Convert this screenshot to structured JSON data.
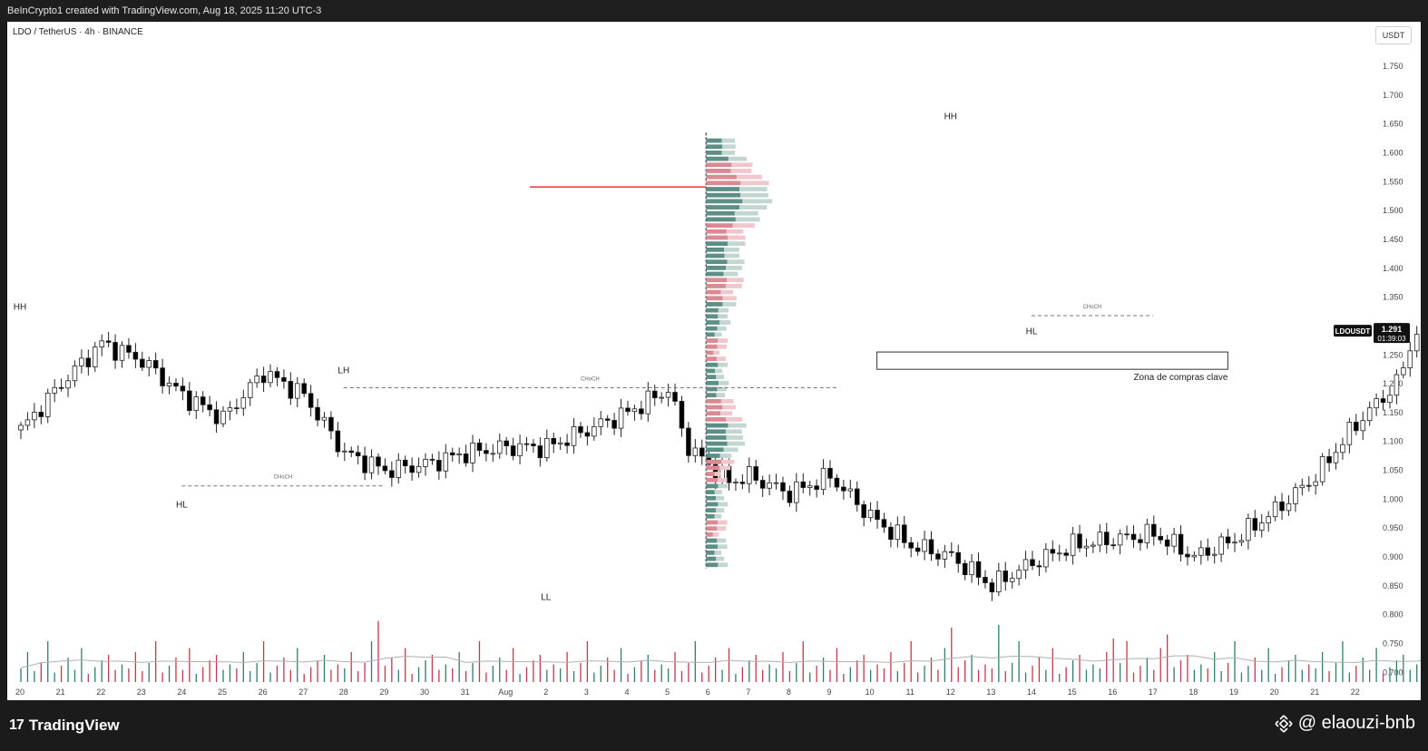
{
  "header": {
    "attribution": "BeInCrypto1 created with TradingView.com, Aug 18, 2025 11:20 UTC-3"
  },
  "symbol_line": "LDO / TetherUS · 4h · BINANCE",
  "currency_label": "USDT",
  "footer": {
    "brand": "TradingView",
    "handle": "@ elaouzi-bnb"
  },
  "colors": {
    "up": "#ffffff",
    "down": "#000000",
    "outline": "#222222",
    "poc_line": "#e53935",
    "vol_up": "#2e7d6b",
    "vol_down": "#c0394b",
    "vol_ma": "#b0b0b0"
  },
  "chart_data": {
    "type": "candlestick",
    "ticker": "LDOUSDT",
    "last_price": "1.291",
    "countdown": "01:39:03",
    "ylim": [
      0.68,
      1.78
    ],
    "y_ticks": [
      "1.750",
      "1.700",
      "1.650",
      "1.600",
      "1.550",
      "1.500",
      "1.450",
      "1.400",
      "1.350",
      "1.300",
      "1.250",
      "1.200",
      "1.150",
      "1.100",
      "1.050",
      "1.000",
      "0.950",
      "0.900",
      "0.850",
      "0.800",
      "0.750",
      "0.700"
    ],
    "x_ticks": [
      "20",
      "21",
      "22",
      "23",
      "24",
      "25",
      "26",
      "27",
      "28",
      "29",
      "30",
      "31",
      "Aug",
      "2",
      "3",
      "4",
      "5",
      "6",
      "7",
      "8",
      "9",
      "10",
      "11",
      "12",
      "13",
      "14",
      "15",
      "16",
      "17",
      "18",
      "19",
      "20",
      "21",
      "22"
    ],
    "key_levels": [
      {
        "label": "HH",
        "date": "Jul 20",
        "price": 1.3
      },
      {
        "label": "HL",
        "date": "Jul 24",
        "price": 1.02
      },
      {
        "label": "LH",
        "date": "Jul 28",
        "price": 1.19
      },
      {
        "label": "LL",
        "date": "Aug 2",
        "price": 0.86
      },
      {
        "label": "HH",
        "date": "Aug 12",
        "price": 1.63
      },
      {
        "label": "HL",
        "date": "Aug 14",
        "price": 1.32
      }
    ],
    "annotations": [
      {
        "text": "CHoCH",
        "from": "Jul 24",
        "to": "Jul 29",
        "price": 1.023
      },
      {
        "text": "CHoCH",
        "from": "Jul 28",
        "to": "Aug 9",
        "price": 1.193
      },
      {
        "text": "CHoCH",
        "from": "Aug 14",
        "to": "Aug 17",
        "price": 1.318
      }
    ],
    "zone": {
      "label": "Zona de compras clave",
      "from": "Aug 10",
      "to": "Aug 18",
      "price_low": 1.225,
      "price_high": 1.255
    },
    "poc_price": 1.541,
    "volume_profile_start": "Aug 6",
    "price_anchors": [
      [
        0,
        1.12
      ],
      [
        1,
        1.2
      ],
      [
        2,
        1.27
      ],
      [
        3,
        1.24
      ],
      [
        4,
        1.18
      ],
      [
        5,
        1.14
      ],
      [
        6,
        1.22
      ],
      [
        7,
        1.18
      ],
      [
        8,
        1.08
      ],
      [
        9,
        1.05
      ],
      [
        10,
        1.06
      ],
      [
        11,
        1.08
      ],
      [
        12,
        1.09
      ],
      [
        13,
        1.09
      ],
      [
        14,
        1.12
      ],
      [
        15,
        1.15
      ],
      [
        16,
        1.19
      ],
      [
        16.5,
        1.09
      ],
      [
        17,
        1.06
      ],
      [
        17.5,
        1.03
      ],
      [
        18,
        1.04
      ],
      [
        19,
        1.01
      ],
      [
        20,
        1.04
      ],
      [
        21,
        0.97
      ],
      [
        22,
        0.92
      ],
      [
        23,
        0.9
      ],
      [
        24,
        0.85
      ],
      [
        25,
        0.89
      ],
      [
        26,
        0.92
      ],
      [
        27,
        0.93
      ],
      [
        28,
        0.94
      ],
      [
        29,
        0.9
      ],
      [
        30,
        0.93
      ],
      [
        31,
        0.98
      ],
      [
        32,
        1.04
      ],
      [
        33,
        1.13
      ],
      [
        34,
        1.2
      ],
      [
        34.7,
        1.33
      ],
      [
        35,
        1.27
      ],
      [
        36,
        1.45
      ],
      [
        37,
        1.56
      ],
      [
        38,
        1.53
      ],
      [
        39,
        1.57
      ],
      [
        40,
        1.52
      ],
      [
        41,
        1.48
      ],
      [
        42,
        1.39
      ],
      [
        43,
        1.4
      ],
      [
        44,
        1.38
      ],
      [
        45,
        1.41
      ],
      [
        46,
        1.36
      ],
      [
        47,
        1.29
      ]
    ],
    "volume_pattern": [
      0.1,
      0.22,
      0.08,
      0.14,
      0.3,
      0.07,
      0.12,
      0.18,
      0.09,
      0.25,
      0.06,
      0.11,
      0.16,
      0.2,
      0.09,
      0.13
    ],
    "volume_spikes": [
      [
        53,
        0.45
      ],
      [
        68,
        0.3
      ],
      [
        138,
        0.4
      ],
      [
        145,
        0.42
      ],
      [
        162,
        0.32
      ],
      [
        170,
        0.35
      ],
      [
        210,
        0.48
      ],
      [
        222,
        0.56
      ],
      [
        233,
        0.5
      ],
      [
        238,
        0.55
      ],
      [
        248,
        0.6
      ],
      [
        253,
        0.4
      ],
      [
        270,
        0.62
      ],
      [
        272,
        0.95
      ],
      [
        280,
        0.3
      ]
    ]
  }
}
